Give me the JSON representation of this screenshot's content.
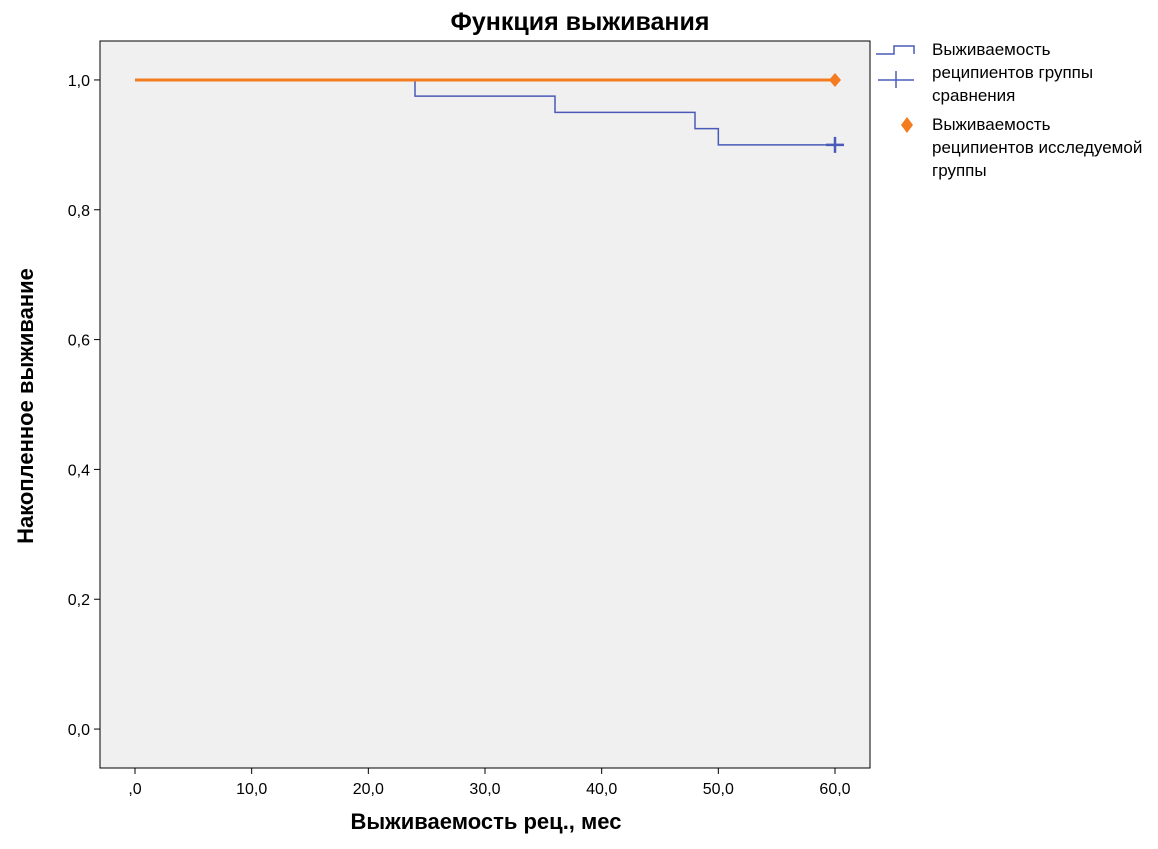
{
  "chart_data": {
    "type": "line",
    "title": "Функция выживания",
    "xlabel": "Выживаемость рец., мес",
    "ylabel": "Накопленное выживание",
    "xlim": [
      -3,
      63
    ],
    "ylim": [
      -0.06,
      1.06
    ],
    "x_ticks": [
      0,
      10,
      20,
      30,
      40,
      50,
      60
    ],
    "x_tick_labels": [
      ",0",
      "10,0",
      "20,0",
      "30,0",
      "40,0",
      "50,0",
      "60,0"
    ],
    "y_ticks": [
      0.0,
      0.2,
      0.4,
      0.6,
      0.8,
      1.0
    ],
    "y_tick_labels": [
      "0,0",
      "0,2",
      "0,4",
      "0,6",
      "0,8",
      "1,0"
    ],
    "plot_background": "#f0f0f0",
    "grid": false,
    "legend_position": "right",
    "series": [
      {
        "name": "Выживаемость реципиентов группы сравнения",
        "style": "step",
        "color": "#4a5ab8",
        "x": [
          0,
          24,
          36,
          48,
          50,
          60
        ],
        "y": [
          1.0,
          0.975,
          0.95,
          0.925,
          0.9,
          0.9
        ],
        "censored": [
          {
            "x": 60,
            "y": 0.9
          }
        ]
      },
      {
        "name": "Выживаемость реципиентов исследуемой группы",
        "style": "step",
        "color": "#f47c20",
        "x": [
          0,
          60
        ],
        "y": [
          1.0,
          1.0
        ],
        "censored": [
          {
            "x": 60,
            "y": 1.0
          }
        ]
      }
    ]
  }
}
